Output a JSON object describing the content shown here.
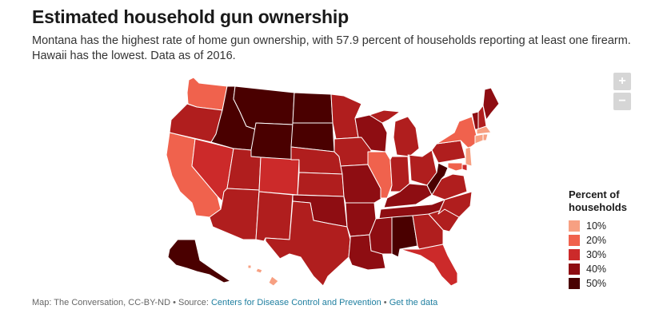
{
  "header": {
    "title": "Estimated household gun ownership",
    "subtitle": "Montana has the highest rate of home gun ownership, with 57.9 percent of households reporting at least one firearm. Hawaii has the lowest. Data as of 2016."
  },
  "zoom": {
    "in_label": "+",
    "out_label": "−"
  },
  "legend": {
    "title": "Percent of households",
    "items": [
      {
        "label": "10%",
        "color": "#f7a082"
      },
      {
        "label": "20%",
        "color": "#f0624d"
      },
      {
        "label": "30%",
        "color": "#cc2a2a"
      },
      {
        "label": "40%",
        "color": "#8e0d12"
      },
      {
        "label": "50%",
        "color": "#4a0000"
      }
    ]
  },
  "footer": {
    "credit": "Map: The Conversation, CC-BY-ND • Source: ",
    "source_link": "Centers for Disease Control and Prevention",
    "separator": " • ",
    "data_link": "Get the data"
  },
  "map_data": {
    "colors": {
      "c10": "#f7a082",
      "c20": "#f0624d",
      "c30": "#cc2a2a",
      "c35": "#b01e1e",
      "c40": "#8e0d12",
      "c50": "#4a0000",
      "border": "#ffffff"
    },
    "states": [
      {
        "id": "WA",
        "level": "c20"
      },
      {
        "id": "OR",
        "level": "c35"
      },
      {
        "id": "CA",
        "level": "c20"
      },
      {
        "id": "NV",
        "level": "c30"
      },
      {
        "id": "ID",
        "level": "c50"
      },
      {
        "id": "MT",
        "level": "c50"
      },
      {
        "id": "WY",
        "level": "c50"
      },
      {
        "id": "UT",
        "level": "c35"
      },
      {
        "id": "AZ",
        "level": "c35"
      },
      {
        "id": "CO",
        "level": "c30"
      },
      {
        "id": "NM",
        "level": "c35"
      },
      {
        "id": "ND",
        "level": "c50"
      },
      {
        "id": "SD",
        "level": "c50"
      },
      {
        "id": "NE",
        "level": "c35"
      },
      {
        "id": "KS",
        "level": "c35"
      },
      {
        "id": "OK",
        "level": "c40"
      },
      {
        "id": "TX",
        "level": "c35"
      },
      {
        "id": "MN",
        "level": "c35"
      },
      {
        "id": "IA",
        "level": "c35"
      },
      {
        "id": "MO",
        "level": "c40"
      },
      {
        "id": "AR",
        "level": "c40"
      },
      {
        "id": "LA",
        "level": "c40"
      },
      {
        "id": "WI",
        "level": "c40"
      },
      {
        "id": "IL",
        "level": "c20"
      },
      {
        "id": "MI",
        "level": "c35"
      },
      {
        "id": "IN",
        "level": "c35"
      },
      {
        "id": "OH",
        "level": "c35"
      },
      {
        "id": "KY",
        "level": "c40"
      },
      {
        "id": "TN",
        "level": "c40"
      },
      {
        "id": "MS",
        "level": "c40"
      },
      {
        "id": "AL",
        "level": "c50"
      },
      {
        "id": "GA",
        "level": "c35"
      },
      {
        "id": "FL",
        "level": "c30"
      },
      {
        "id": "SC",
        "level": "c35"
      },
      {
        "id": "NC",
        "level": "c35"
      },
      {
        "id": "VA",
        "level": "c35"
      },
      {
        "id": "WV",
        "level": "c50"
      },
      {
        "id": "PA",
        "level": "c35"
      },
      {
        "id": "NY",
        "level": "c20"
      },
      {
        "id": "VT",
        "level": "c40"
      },
      {
        "id": "NH",
        "level": "c35"
      },
      {
        "id": "ME",
        "level": "c40"
      },
      {
        "id": "MA",
        "level": "c10"
      },
      {
        "id": "CT",
        "level": "c10"
      },
      {
        "id": "RI",
        "level": "c10"
      },
      {
        "id": "NJ",
        "level": "c10"
      },
      {
        "id": "DE",
        "level": "c30"
      },
      {
        "id": "MD",
        "level": "c20"
      },
      {
        "id": "AK",
        "level": "c50"
      },
      {
        "id": "HI",
        "level": "c10"
      }
    ]
  }
}
